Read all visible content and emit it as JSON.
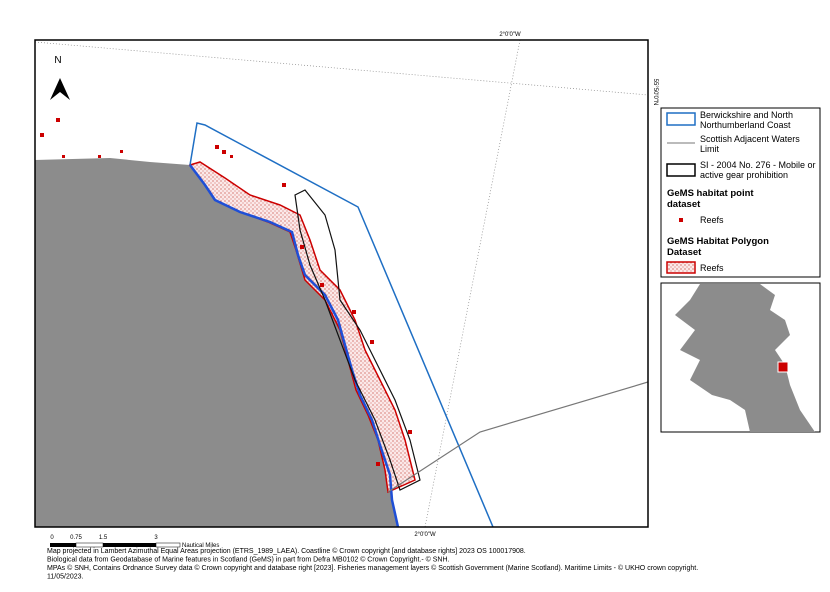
{
  "map": {
    "north_label": "N",
    "graticule": {
      "top_label": "2°0'0\"W",
      "bottom_label": "2°0'0\"W",
      "right_label": "55°50'0\"N"
    }
  },
  "legend": {
    "items": [
      "Berwickshire and North Northumberland Coast",
      "Scottish Adjacent Waters Limit",
      "SI - 2004 No. 276 - Mobile or active gear prohibition"
    ],
    "point_heading": "GeMS habitat point dataset",
    "point_label": "Reefs",
    "polygon_heading": "GeMS Habitat Polygon Dataset",
    "polygon_label": "Reefs"
  },
  "scale_bar": {
    "ticks": [
      "0",
      "0.75",
      "1.5",
      "3"
    ],
    "unit": "Nautical Miles"
  },
  "credits": [
    "Map projected in Lambert Azimuthal Equal Areas projection (ETRS_1989_LAEA). Coastline © Crown copyright [and database rights] 2023 OS 100017908.",
    "Biological data from Geodatabase of Marine features in Scotland (GeMS) in part from Defra MB0102 © Crown Copyright.- © SNH.",
    " MPAs © SNH, Contains Ordnance Survey data © Crown copyright and database right [2023].  Fisheries management layers  © Scottish Government (Marine Scotland). Maritime Limits - © UKHO crown copyright.",
    "11/05/2023."
  ]
}
